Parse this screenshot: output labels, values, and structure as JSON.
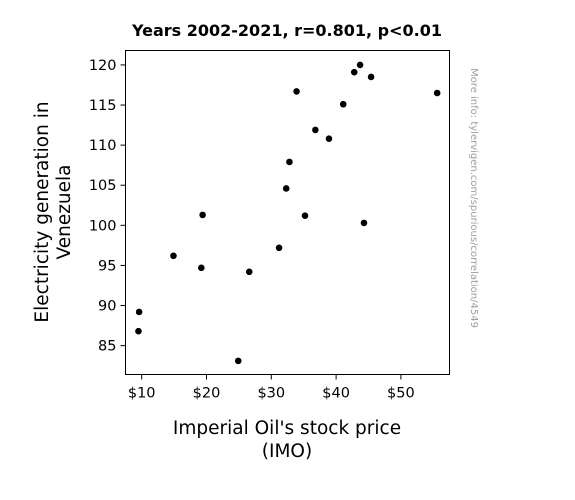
{
  "chart_data": {
    "type": "scatter",
    "title": "Years 2002-2021, r=0.801, p<0.01",
    "xlabel_lines": [
      "Imperial Oil's stock price",
      "(IMO)"
    ],
    "ylabel_lines": [
      "Electricity generation in",
      "Venezuela"
    ],
    "side_note": "More info: tylervigen.com/spurious/correlation/4549",
    "xlim": [
      7.5,
      57.5
    ],
    "ylim": [
      81.4,
      121.8
    ],
    "x_ticks": [
      10,
      20,
      30,
      40,
      50
    ],
    "x_tick_labels": [
      "$10",
      "$20",
      "$30",
      "$40",
      "$50"
    ],
    "y_ticks": [
      85,
      90,
      95,
      100,
      105,
      110,
      115,
      120
    ],
    "y_tick_labels": [
      "85",
      "90",
      "95",
      "100",
      "105",
      "110",
      "115",
      "120"
    ],
    "grid": false,
    "marker_color": "#000000",
    "points": [
      {
        "x": 9.6,
        "y": 89.2
      },
      {
        "x": 9.5,
        "y": 86.8
      },
      {
        "x": 14.9,
        "y": 96.2
      },
      {
        "x": 19.2,
        "y": 94.7
      },
      {
        "x": 19.4,
        "y": 101.3
      },
      {
        "x": 24.9,
        "y": 83.1
      },
      {
        "x": 26.6,
        "y": 94.2
      },
      {
        "x": 31.2,
        "y": 97.2
      },
      {
        "x": 32.3,
        "y": 104.6
      },
      {
        "x": 32.8,
        "y": 107.9
      },
      {
        "x": 33.9,
        "y": 116.7
      },
      {
        "x": 35.2,
        "y": 101.2
      },
      {
        "x": 36.8,
        "y": 111.9
      },
      {
        "x": 38.9,
        "y": 110.8
      },
      {
        "x": 41.1,
        "y": 115.1
      },
      {
        "x": 42.8,
        "y": 119.1
      },
      {
        "x": 43.7,
        "y": 120.0
      },
      {
        "x": 44.3,
        "y": 100.3
      },
      {
        "x": 45.4,
        "y": 118.5
      },
      {
        "x": 55.6,
        "y": 116.5
      }
    ]
  }
}
